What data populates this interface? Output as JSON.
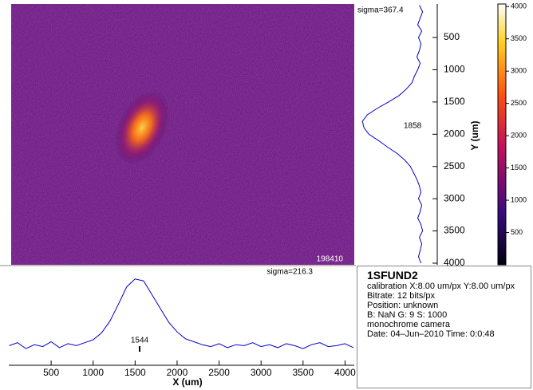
{
  "chart_data": [
    {
      "type": "line",
      "orientation": "horizontal",
      "x_label": "X (um)",
      "annotation": "sigma=216.3",
      "peak_label": "1544",
      "color": "#0000cc",
      "x": [
        0,
        100,
        200,
        300,
        400,
        500,
        600,
        700,
        800,
        900,
        1000,
        1100,
        1200,
        1300,
        1400,
        1500,
        1600,
        1700,
        1800,
        1900,
        2000,
        2100,
        2200,
        2300,
        2400,
        2500,
        2600,
        2700,
        2800,
        2900,
        3000,
        3100,
        3200,
        3300,
        3400,
        3500,
        3600,
        3700,
        3800,
        3900,
        4000,
        4100
      ],
      "values": [
        20,
        23,
        17,
        21,
        19,
        24,
        18,
        22,
        20,
        23,
        26,
        33,
        45,
        62,
        80,
        88,
        86,
        72,
        58,
        44,
        34,
        27,
        24,
        21,
        19,
        22,
        18,
        21,
        20,
        23,
        19,
        21,
        18,
        22,
        20,
        17,
        21,
        23,
        19,
        20,
        22,
        18
      ],
      "xlim": [
        0,
        4110
      ],
      "xticks": [
        500,
        1000,
        1500,
        2000,
        2500,
        3000,
        3500,
        4000
      ],
      "ylim": [
        0,
        100
      ]
    },
    {
      "type": "line",
      "orientation": "vertical",
      "x_label": "Y (um)",
      "annotation": "sigma=367.4",
      "peak_label": "1858",
      "color": "#0000cc",
      "x": [
        0,
        100,
        200,
        300,
        400,
        500,
        600,
        700,
        800,
        900,
        1000,
        1100,
        1200,
        1300,
        1400,
        1500,
        1600,
        1700,
        1800,
        1900,
        2000,
        2100,
        2200,
        2300,
        2400,
        2500,
        2600,
        2700,
        2800,
        2900,
        3000,
        3100,
        3200,
        3300,
        3400,
        3500,
        3600,
        3700,
        3800,
        3900,
        4000
      ],
      "values": [
        22,
        18,
        21,
        24,
        19,
        23,
        20,
        22,
        25,
        21,
        24,
        28,
        31,
        38,
        47,
        60,
        74,
        86,
        92,
        90,
        84,
        72,
        61,
        49,
        40,
        33,
        29,
        25,
        22,
        20,
        23,
        19,
        21,
        24,
        20,
        18,
        22,
        19,
        21,
        23,
        20
      ],
      "xlim": [
        0,
        4000
      ],
      "xticks": [
        500,
        1000,
        1500,
        2000,
        2500,
        3000,
        3500,
        4000
      ],
      "ylim": [
        0,
        100
      ]
    },
    {
      "type": "colorbar",
      "ylim": [
        0,
        4040
      ],
      "yticks": [
        500,
        1000,
        1500,
        2000,
        2500,
        3000,
        3500,
        4000
      ]
    }
  ],
  "image": {
    "label": "198410"
  },
  "info": {
    "title": "1SFUND2",
    "lines": [
      "calibration X:8.00 um/px  Y:8.00 um/px",
      "Bitrate: 12 bits/px",
      "Position: unknown",
      "B: NaN  G: 9      S: 1000",
      "monochrome camera",
      "Date: 04–Jun–2010     Time: 0:0:48"
    ]
  }
}
